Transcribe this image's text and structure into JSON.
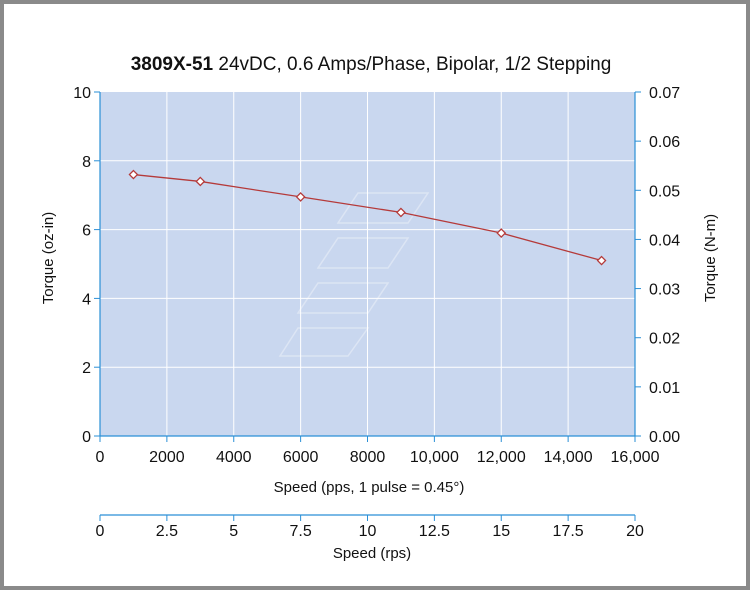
{
  "chart_data": {
    "type": "line",
    "title_bold": "3809X-51",
    "title_rest": " 24vDC, 0.6 Amps/Phase, Bipolar, 1/2 Stepping",
    "xlabel": "Speed (pps, 1 pulse = 0.45°)",
    "ylabel_left": "Torque (oz-in)",
    "ylabel_right": "Torque (N-m)",
    "x2label": "Speed (rps)",
    "xlim": [
      0,
      16000
    ],
    "ylim": [
      0,
      10
    ],
    "y2lim": [
      0,
      0.07
    ],
    "x2lim": [
      0,
      20
    ],
    "x_ticks": [
      "0",
      "2000",
      "4000",
      "6000",
      "8000",
      "10,000",
      "12,000",
      "14,000",
      "16,000"
    ],
    "x_tick_values": [
      0,
      2000,
      4000,
      6000,
      8000,
      10000,
      12000,
      14000,
      16000
    ],
    "y_ticks": [
      "0",
      "2",
      "4",
      "6",
      "8",
      "10"
    ],
    "y_tick_values": [
      0,
      2,
      4,
      6,
      8,
      10
    ],
    "y2_ticks": [
      "0.00",
      "0.01",
      "0.02",
      "0.03",
      "0.04",
      "0.05",
      "0.06",
      "0.07"
    ],
    "y2_tick_values": [
      0,
      0.01,
      0.02,
      0.03,
      0.04,
      0.05,
      0.06,
      0.07
    ],
    "x2_ticks": [
      "0",
      "2.5",
      "5",
      "7.5",
      "10",
      "12.5",
      "15",
      "17.5",
      "20"
    ],
    "x2_tick_values": [
      0,
      2.5,
      5,
      7.5,
      10,
      12.5,
      15,
      17.5,
      20
    ],
    "grid": true,
    "series": [
      {
        "x": [
          1000,
          3000,
          6000,
          9000,
          12000,
          15000
        ],
        "y": [
          7.6,
          7.4,
          6.95,
          6.5,
          5.9,
          5.1
        ]
      }
    ],
    "colors": {
      "plot_bg": "#c9d7ef",
      "grid": "#ffffff",
      "axis": "#2a8fd6",
      "line": "#b53a3a",
      "marker_fill": "#ffffff"
    }
  }
}
